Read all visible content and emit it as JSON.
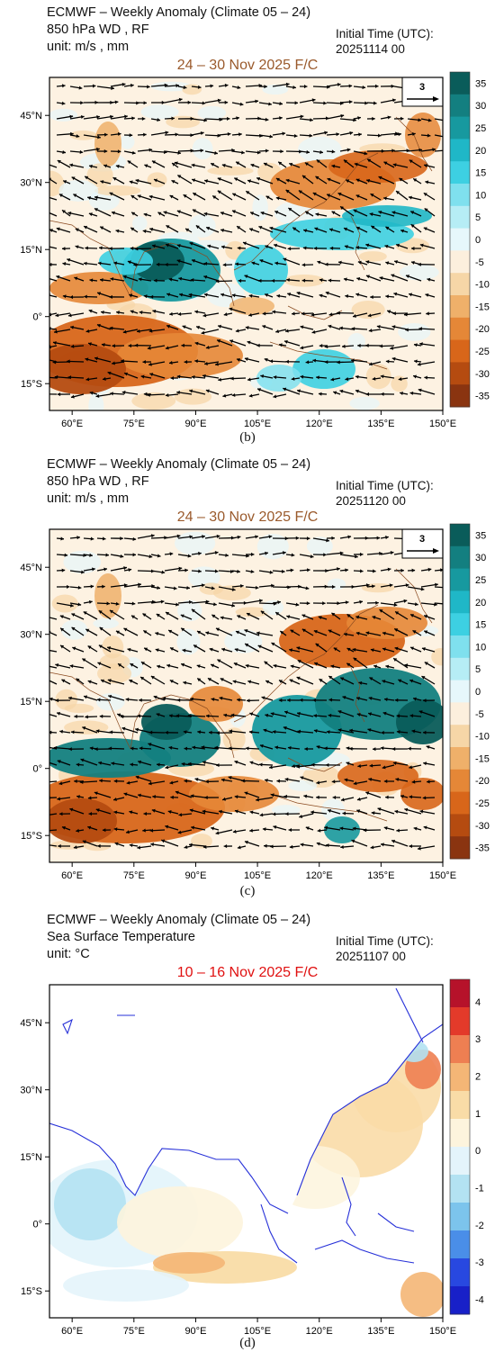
{
  "panels": [
    {
      "id": "b",
      "title": "ECMWF – Weekly Anomaly (Climate 05 – 24)",
      "variable": "850 hPa WD , RF",
      "unit": "unit: m/s , mm",
      "init_label": "Initial Time (UTC):",
      "init_time": "20251114  00",
      "forecast_period": "24 – 30 Nov 2025 F/C",
      "reference_vector": "3",
      "caption": "(b)",
      "colorbar_labels": [
        "35",
        "30",
        "25",
        "20",
        "15",
        "10",
        "5",
        "0",
        "-5",
        "-10",
        "-15",
        "-20",
        "-25",
        "-30",
        "-35"
      ]
    },
    {
      "id": "c",
      "title": "ECMWF – Weekly Anomaly (Climate 05 – 24)",
      "variable": "850 hPa WD , RF",
      "unit": "unit: m/s , mm",
      "init_label": "Initial Time (UTC):",
      "init_time": "20251120  00",
      "forecast_period": "24 – 30 Nov 2025 F/C",
      "reference_vector": "3",
      "caption": "(c)",
      "colorbar_labels": [
        "35",
        "30",
        "25",
        "20",
        "15",
        "10",
        "5",
        "0",
        "-5",
        "-10",
        "-15",
        "-20",
        "-25",
        "-30",
        "-35"
      ]
    },
    {
      "id": "d",
      "title": "ECMWF – Weekly Anomaly (Climate 05 – 24)",
      "variable": "Sea Surface Temperature",
      "unit": "unit: °C",
      "init_label": "Initial Time (UTC):",
      "init_time": "20251107 00",
      "forecast_period": "10 – 16 Nov 2025 F/C",
      "caption": "(d)",
      "colorbar_labels": [
        "4",
        "3",
        "2",
        "1",
        "0",
        "-1",
        "-2",
        "-3",
        "-4"
      ]
    }
  ],
  "axes": {
    "lat_labels": [
      "45°N",
      "30°N",
      "15°N",
      "0°",
      "15°S"
    ],
    "lon_labels": [
      "60°E",
      "75°E",
      "90°E",
      "105°E",
      "120°E",
      "135°E",
      "150°E"
    ]
  },
  "colors": {
    "rain_positive": [
      "#e6f7fb",
      "#b6edf5",
      "#7fe0ee",
      "#3dd0e2",
      "#1fb7c7",
      "#17999f",
      "#137f80",
      "#0a5c5a"
    ],
    "rain_negative": [
      "#fcefdd",
      "#f6d6a7",
      "#efb06a",
      "#e58737",
      "#d8661a",
      "#b54b10",
      "#8a3410"
    ],
    "sst_positive": [
      "#fdf4dd",
      "#f9dca7",
      "#f4b676",
      "#ee7f52",
      "#e33a2a",
      "#b6122a"
    ],
    "sst_negative": [
      "#e4f4fb",
      "#b3e2f2",
      "#7cc4ec",
      "#4a8ee8",
      "#2848e0",
      "#1820c8"
    ],
    "coastline_sst": "#2630d8",
    "coastline_wind": "#8a4a20"
  }
}
